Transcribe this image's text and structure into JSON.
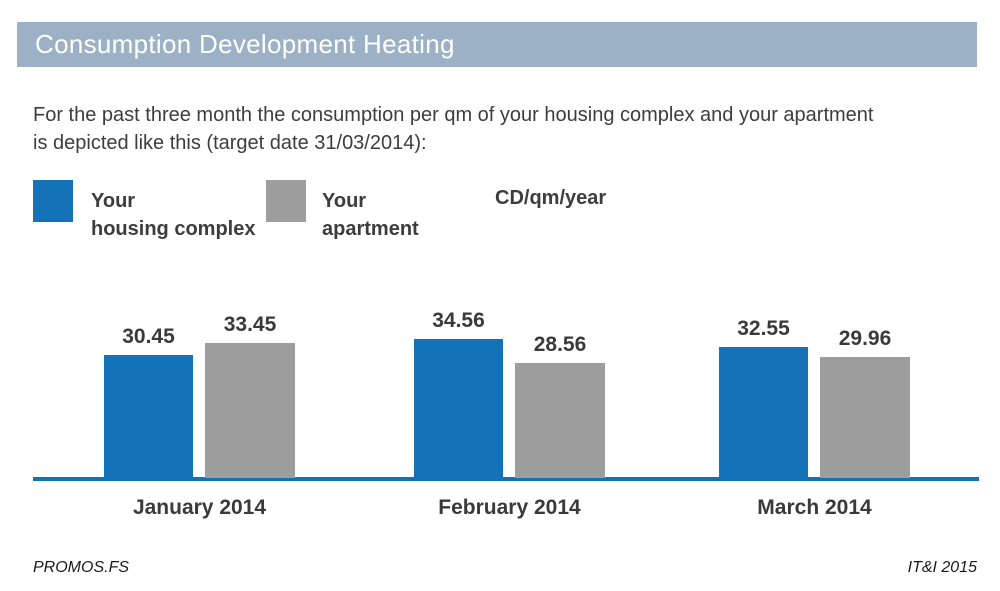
{
  "header": {
    "title": "Consumption Development Heating"
  },
  "intro": {
    "line1": "For the past three month the consumption per qm of your housing complex and your apartment",
    "line2": "is depicted like this (target date 31/03/2014):"
  },
  "legend": {
    "series1": {
      "line1": "Your",
      "line2": "housing complex"
    },
    "series2": {
      "line1": "Your",
      "line2": "apartment"
    },
    "unit": "CD/qm/year"
  },
  "chart_data": {
    "type": "bar",
    "categories": [
      "January 2014",
      "February 2014",
      "March 2014"
    ],
    "series": [
      {
        "name": "Your housing complex",
        "color": "#1473b8",
        "values": [
          30.45,
          34.56,
          32.55
        ]
      },
      {
        "name": "Your apartment",
        "color": "#9d9d9d",
        "values": [
          33.45,
          28.56,
          29.96
        ]
      }
    ],
    "value_decimals": 2,
    "unit": "CD/qm/year",
    "ylim": [
      0,
      35
    ],
    "grid": false,
    "legend_position": "top",
    "baseline_axis": true
  },
  "footer": {
    "left": "PROMOS.FS",
    "right": "IT&I 2015"
  },
  "colors": {
    "header_bg": "#9cb1c5",
    "primary": "#1473b8",
    "secondary": "#9d9d9d",
    "axis": "#1473b8",
    "text_dark": "#3d3d3d"
  }
}
